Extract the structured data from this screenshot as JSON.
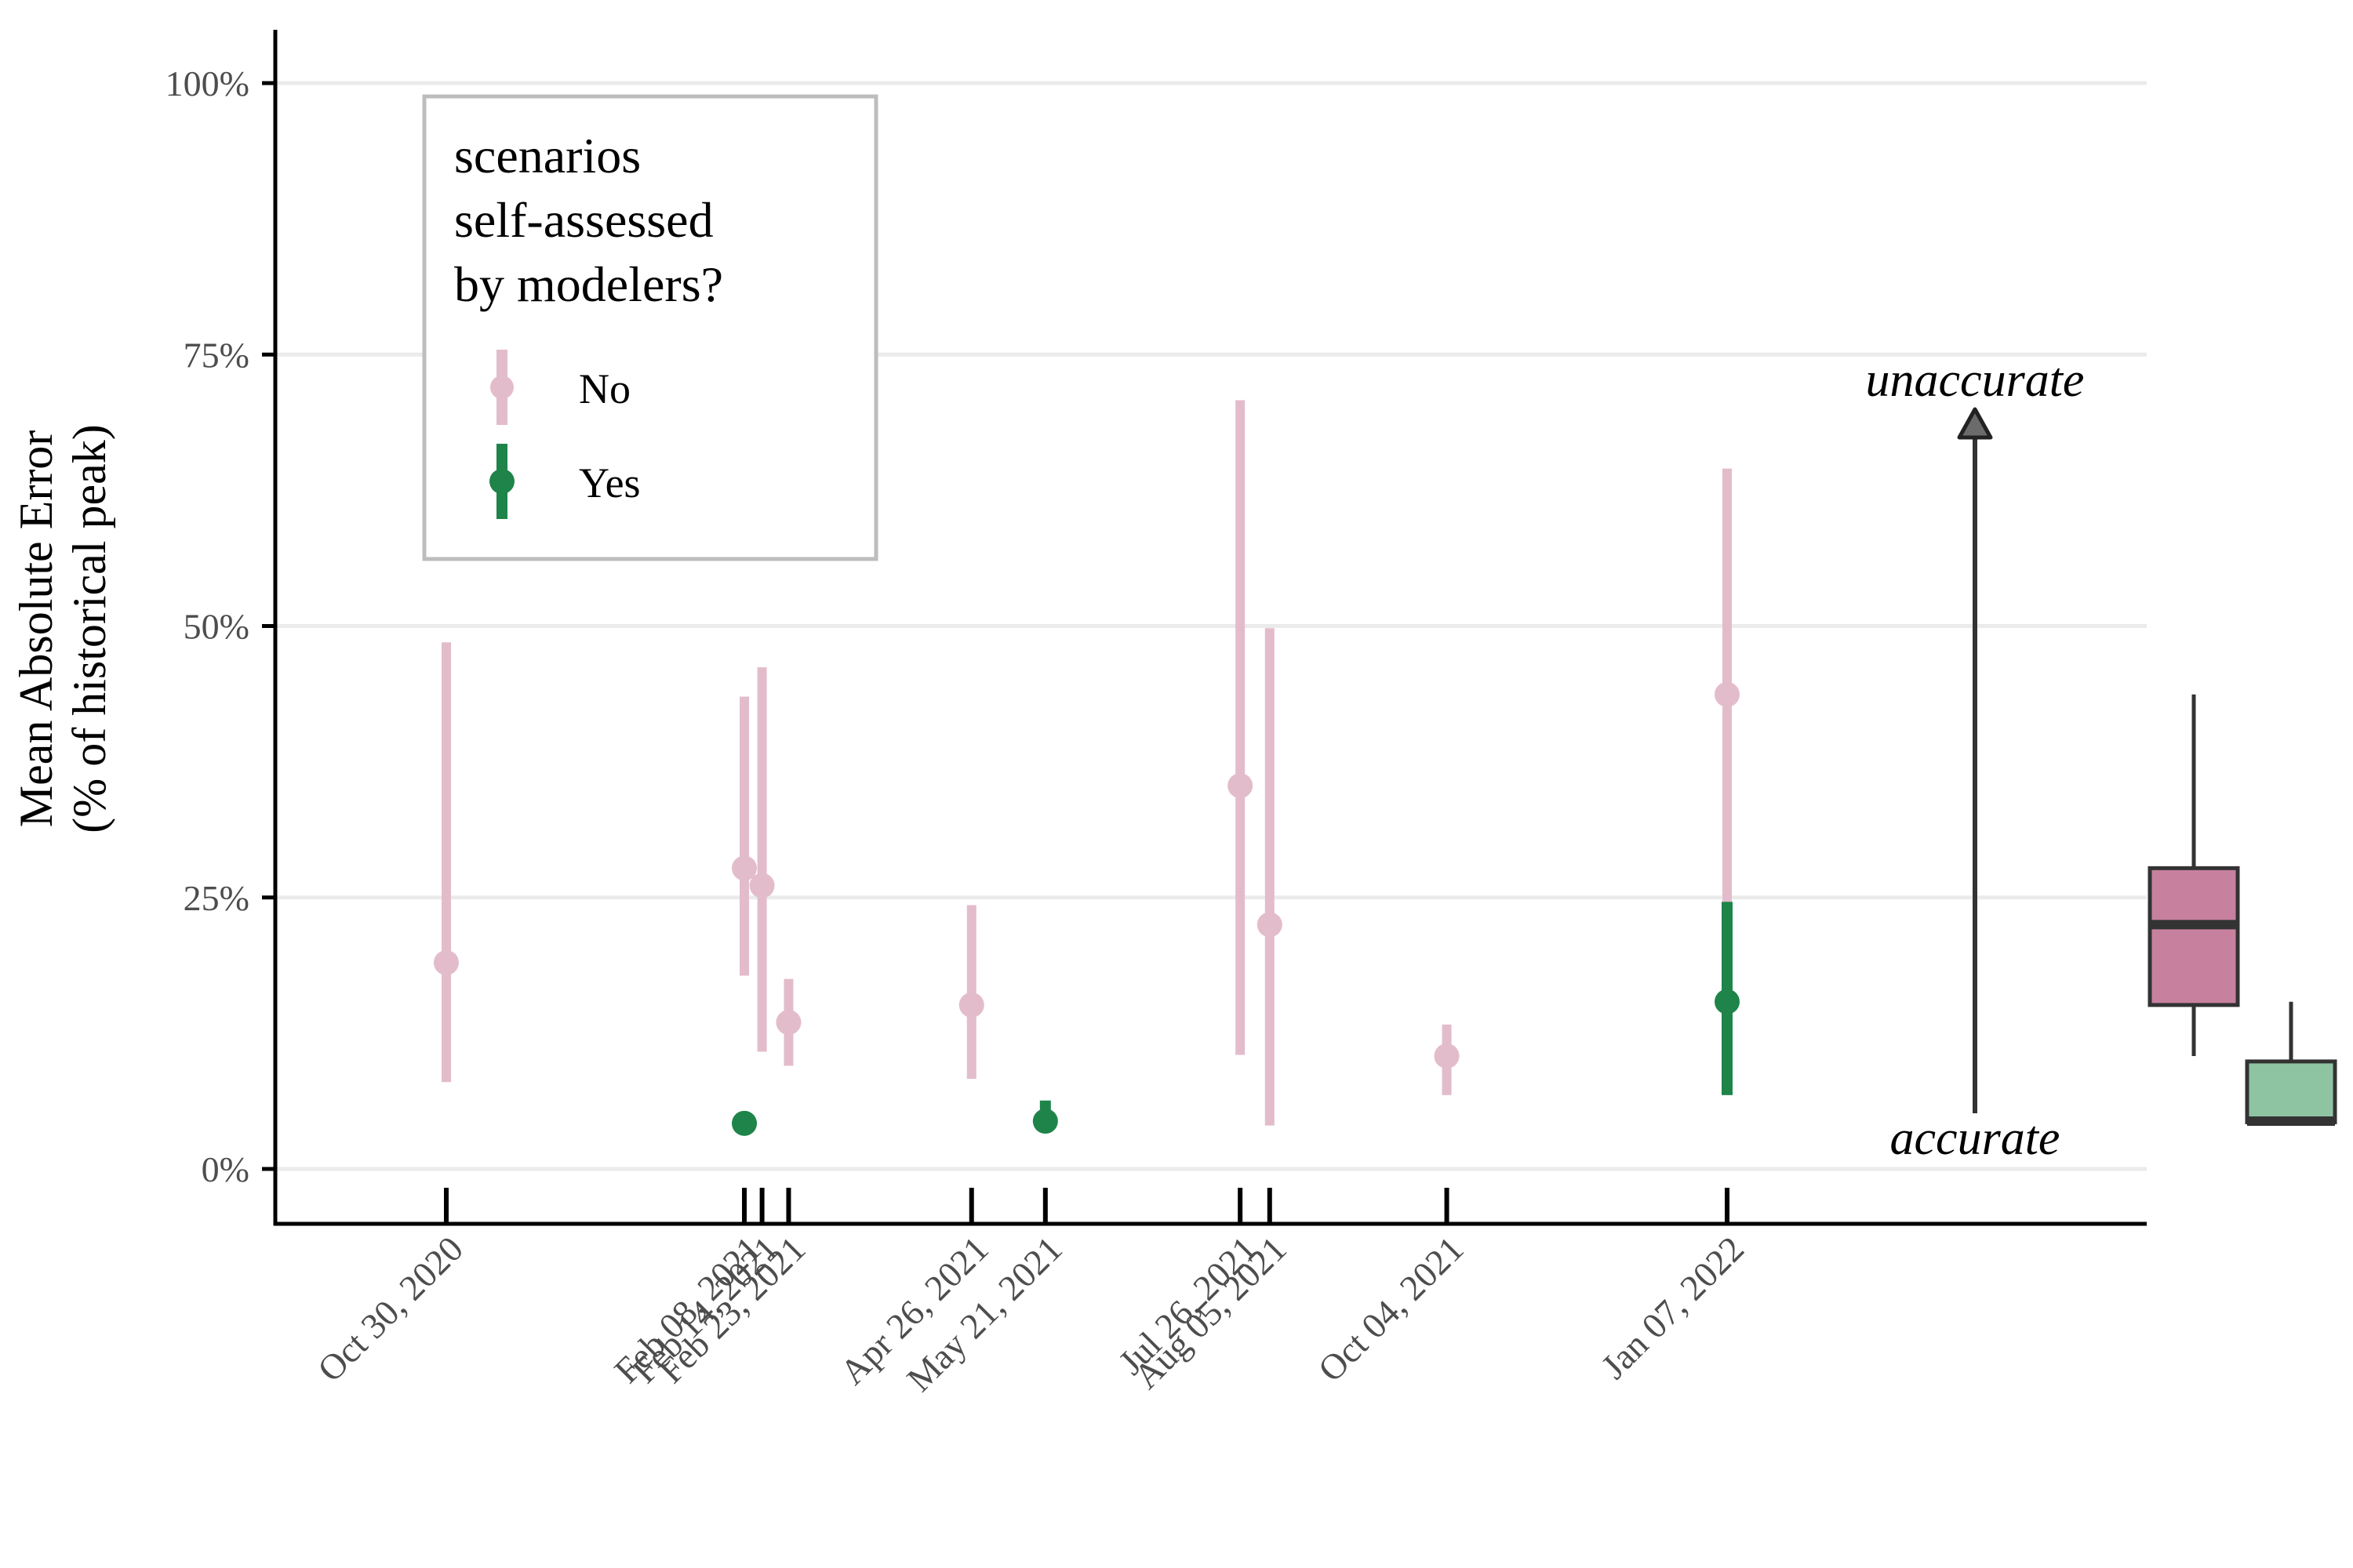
{
  "chart_data": {
    "type": "scatter",
    "ylabel_lines": [
      "Mean Absolute Error",
      "(% of historical peak)"
    ],
    "xlabel": "",
    "ylim": [
      0,
      100
    ],
    "y_ticks": [
      0,
      25,
      50,
      75,
      100
    ],
    "y_tick_labels": [
      "0%",
      "25%",
      "50%",
      "75%",
      "100%"
    ],
    "x_tick_labels": [
      "Oct 30, 2020",
      "Feb 08, 2021",
      "Feb 14, 2021",
      "Feb 23, 2021",
      "Apr 26, 2021",
      "May 21, 2021",
      "Jul 26, 2021",
      "Aug 05, 2021",
      "Oct 04, 2021",
      "Jan 07, 2022"
    ],
    "x_ticks": [
      "2020-10-30",
      "2021-02-08",
      "2021-02-14",
      "2021-02-23",
      "2021-04-26",
      "2021-05-21",
      "2021-07-26",
      "2021-08-05",
      "2021-10-04",
      "2022-01-07"
    ],
    "grid": "horizontal",
    "legend": {
      "title_lines": [
        "scenarios",
        "self-assessed",
        "by modelers?"
      ],
      "placement": "top-left",
      "entries": [
        "No",
        "Yes"
      ]
    },
    "series": [
      {
        "name": "No",
        "color": "#e3bccb",
        "points": [
          {
            "x": "2020-10-30",
            "y": 19.0,
            "low": 8.0,
            "high": 48.5
          },
          {
            "x": "2021-02-08",
            "y": 27.7,
            "low": 17.8,
            "high": 43.5
          },
          {
            "x": "2021-02-14",
            "y": 26.1,
            "low": 10.8,
            "high": 46.2
          },
          {
            "x": "2021-02-23",
            "y": 13.5,
            "low": 9.5,
            "high": 17.5
          },
          {
            "x": "2021-04-26",
            "y": 15.1,
            "low": 8.3,
            "high": 24.3
          },
          {
            "x": "2021-07-26",
            "y": 35.3,
            "low": 10.5,
            "high": 70.8
          },
          {
            "x": "2021-08-05",
            "y": 22.5,
            "low": 4.0,
            "high": 49.8
          },
          {
            "x": "2021-10-04",
            "y": 10.4,
            "low": 6.8,
            "high": 13.3
          },
          {
            "x": "2022-01-07",
            "y": 43.7,
            "low": 24.5,
            "high": 64.5
          }
        ]
      },
      {
        "name": "Yes",
        "color": "#1e8449",
        "points": [
          {
            "x": "2021-02-08",
            "y": 4.2,
            "low": 4.2,
            "high": 4.2
          },
          {
            "x": "2021-05-21",
            "y": 4.4,
            "low": 4.4,
            "high": 6.3
          },
          {
            "x": "2022-01-07",
            "y": 15.4,
            "low": 6.8,
            "high": 24.6
          }
        ]
      }
    ],
    "boxplots": [
      {
        "group": "No",
        "color": "#c7819f",
        "min": 10.4,
        "q1": 15.1,
        "median": 22.5,
        "q3": 27.7,
        "max": 43.7
      },
      {
        "group": "Yes",
        "color": "#8fc4a3",
        "min": 4.2,
        "q1": 4.3,
        "median": 4.4,
        "q3": 9.9,
        "max": 15.4
      }
    ],
    "annotations": {
      "top": "unaccurate",
      "bottom": "accurate"
    }
  }
}
